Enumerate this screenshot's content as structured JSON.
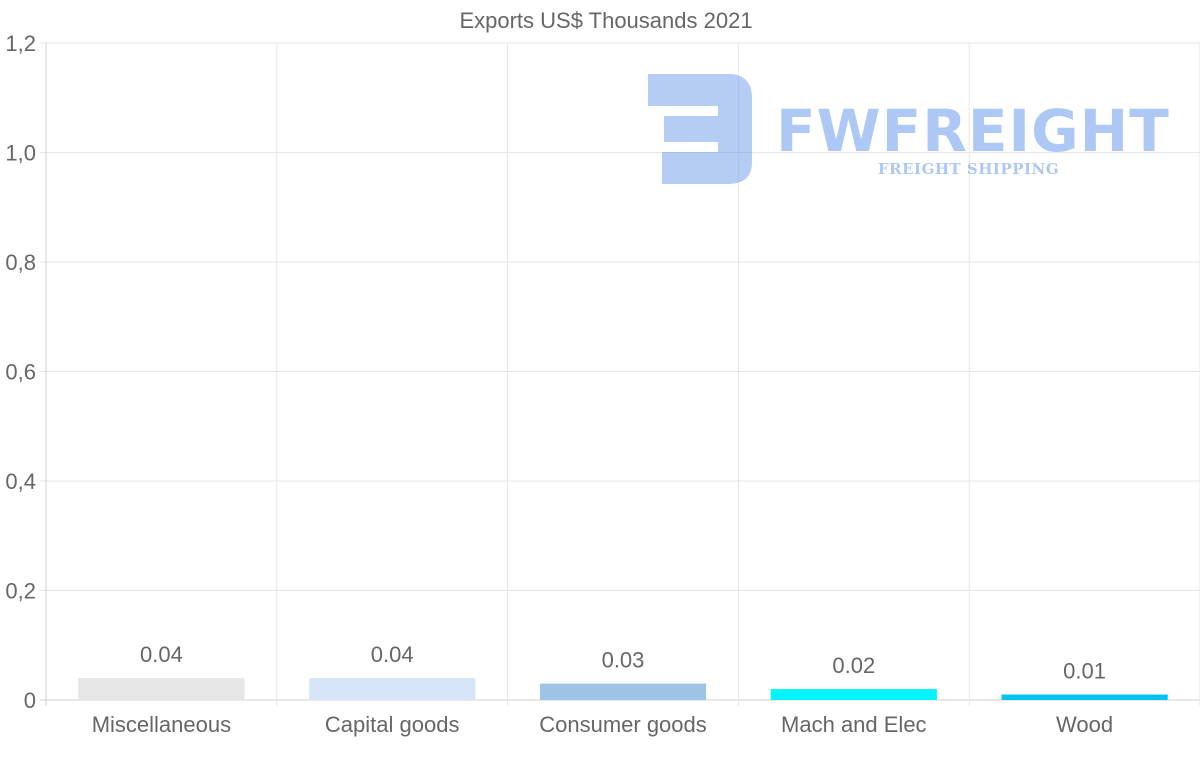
{
  "chart_data": {
    "type": "bar",
    "title": "Exports US$ Thousands 2021",
    "categories": [
      "Miscellaneous",
      "Capital goods",
      "Consumer goods",
      "Mach and Elec",
      "Wood"
    ],
    "values": [
      0.04,
      0.04,
      0.03,
      0.02,
      0.01
    ],
    "value_labels": [
      "0.04",
      "0.04",
      "0.03",
      "0.02",
      "0.01"
    ],
    "bar_colors": [
      "#e6e6e6",
      "#d6e6f8",
      "#9dc3e6",
      "#00f5ff",
      "#00c4f0"
    ],
    "ylim": [
      0,
      1.2
    ],
    "yticks": [
      "0",
      "0,2",
      "0,4",
      "0,6",
      "0,8",
      "1,0",
      "1,2"
    ],
    "xlabel": "",
    "ylabel": "",
    "grid": true
  },
  "watermark": {
    "brand": "FWFREIGHT",
    "tagline": "FREIGHT SHIPPING",
    "color": "#6b9cec"
  }
}
